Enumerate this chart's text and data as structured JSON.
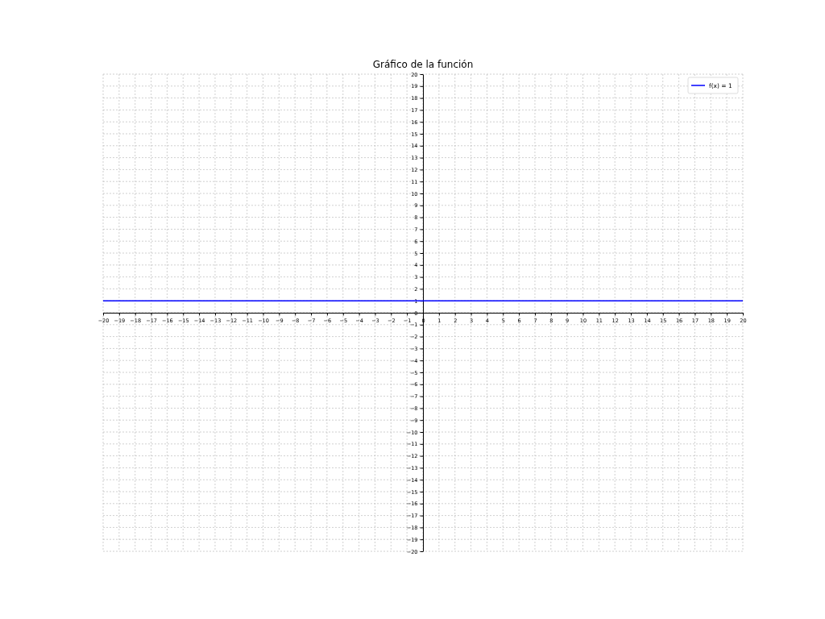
{
  "chart_data": {
    "type": "line",
    "title": "Gráfico de la función",
    "x": [
      -20,
      20
    ],
    "series": [
      {
        "name": "f(x) = 1",
        "color": "#0000ff",
        "values": [
          1,
          1
        ]
      }
    ],
    "xlim": [
      -20,
      20
    ],
    "ylim": [
      -20,
      20
    ],
    "xticks": [
      -20,
      -19,
      -18,
      -17,
      -16,
      -15,
      -14,
      -13,
      -12,
      -11,
      -10,
      -9,
      -8,
      -7,
      -6,
      -5,
      -4,
      -3,
      -2,
      -1,
      0,
      1,
      2,
      3,
      4,
      5,
      6,
      7,
      8,
      9,
      10,
      11,
      12,
      13,
      14,
      15,
      16,
      17,
      18,
      19,
      20
    ],
    "yticks": [
      -20,
      -19,
      -18,
      -17,
      -16,
      -15,
      -14,
      -13,
      -12,
      -11,
      -10,
      -9,
      -8,
      -7,
      -6,
      -5,
      -4,
      -3,
      -2,
      -1,
      0,
      1,
      2,
      3,
      4,
      5,
      6,
      7,
      8,
      9,
      10,
      11,
      12,
      13,
      14,
      15,
      16,
      17,
      18,
      19,
      20
    ],
    "grid": true,
    "legend": "top right"
  }
}
